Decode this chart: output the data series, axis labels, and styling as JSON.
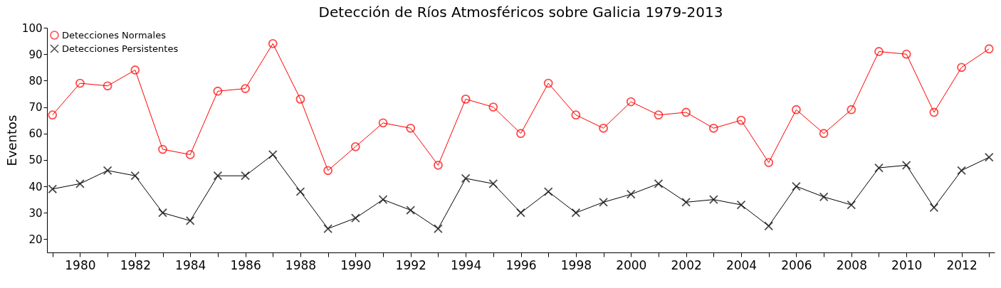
{
  "chart_data": {
    "type": "line",
    "title": "Detección de Ríos Atmosféricos sobre Galicia 1979-2013",
    "ylabel": "Eventos",
    "x": [
      1979,
      1980,
      1981,
      1982,
      1983,
      1984,
      1985,
      1986,
      1987,
      1988,
      1989,
      1990,
      1991,
      1992,
      1993,
      1994,
      1995,
      1996,
      1997,
      1998,
      1999,
      2000,
      2001,
      2002,
      2003,
      2004,
      2005,
      2006,
      2007,
      2008,
      2009,
      2010,
      2011,
      2012,
      2013
    ],
    "series": [
      {
        "name": "Detecciones Normales",
        "color": "#ff0000",
        "marker": "circle",
        "values": [
          67,
          79,
          78,
          84,
          54,
          52,
          76,
          77,
          94,
          73,
          46,
          55,
          64,
          62,
          48,
          73,
          70,
          60,
          79,
          67,
          62,
          72,
          67,
          68,
          62,
          65,
          49,
          69,
          60,
          69,
          91,
          90,
          68,
          85,
          92
        ]
      },
      {
        "name": "Detecciones Persistentes",
        "color": "#000000",
        "marker": "cross",
        "values": [
          39,
          41,
          46,
          44,
          30,
          27,
          44,
          44,
          52,
          38,
          24,
          28,
          35,
          31,
          24,
          43,
          41,
          30,
          38,
          30,
          34,
          37,
          41,
          34,
          35,
          33,
          25,
          40,
          36,
          33,
          47,
          48,
          32,
          46,
          51
        ]
      }
    ],
    "xlim": [
      1978.8,
      2013.2
    ],
    "xticks": [
      {
        "value": 1979,
        "label": null
      },
      1980,
      {
        "value": 1981,
        "label": null
      },
      1982,
      {
        "value": 1983,
        "label": null
      },
      1984,
      {
        "value": 1985,
        "label": null
      },
      1986,
      {
        "value": 1987,
        "label": null
      },
      1988,
      {
        "value": 1989,
        "label": null
      },
      1990,
      {
        "value": 1991,
        "label": null
      },
      1992,
      {
        "value": 1993,
        "label": null
      },
      1994,
      {
        "value": 1995,
        "label": null
      },
      1996,
      {
        "value": 1997,
        "label": null
      },
      1998,
      {
        "value": 1999,
        "label": null
      },
      2000,
      {
        "value": 2001,
        "label": null
      },
      2002,
      {
        "value": 2003,
        "label": null
      },
      2004,
      {
        "value": 2005,
        "label": null
      },
      2006,
      {
        "value": 2007,
        "label": null
      },
      2008,
      {
        "value": 2009,
        "label": null
      },
      2010,
      {
        "value": 2011,
        "label": null
      },
      2012,
      {
        "value": 2013,
        "label": null
      }
    ],
    "ylim": [
      15,
      100
    ],
    "yticks": [
      20,
      30,
      40,
      50,
      60,
      70,
      80,
      90,
      100
    ],
    "grid": false,
    "legend": "top left",
    "line_style": "solid"
  }
}
